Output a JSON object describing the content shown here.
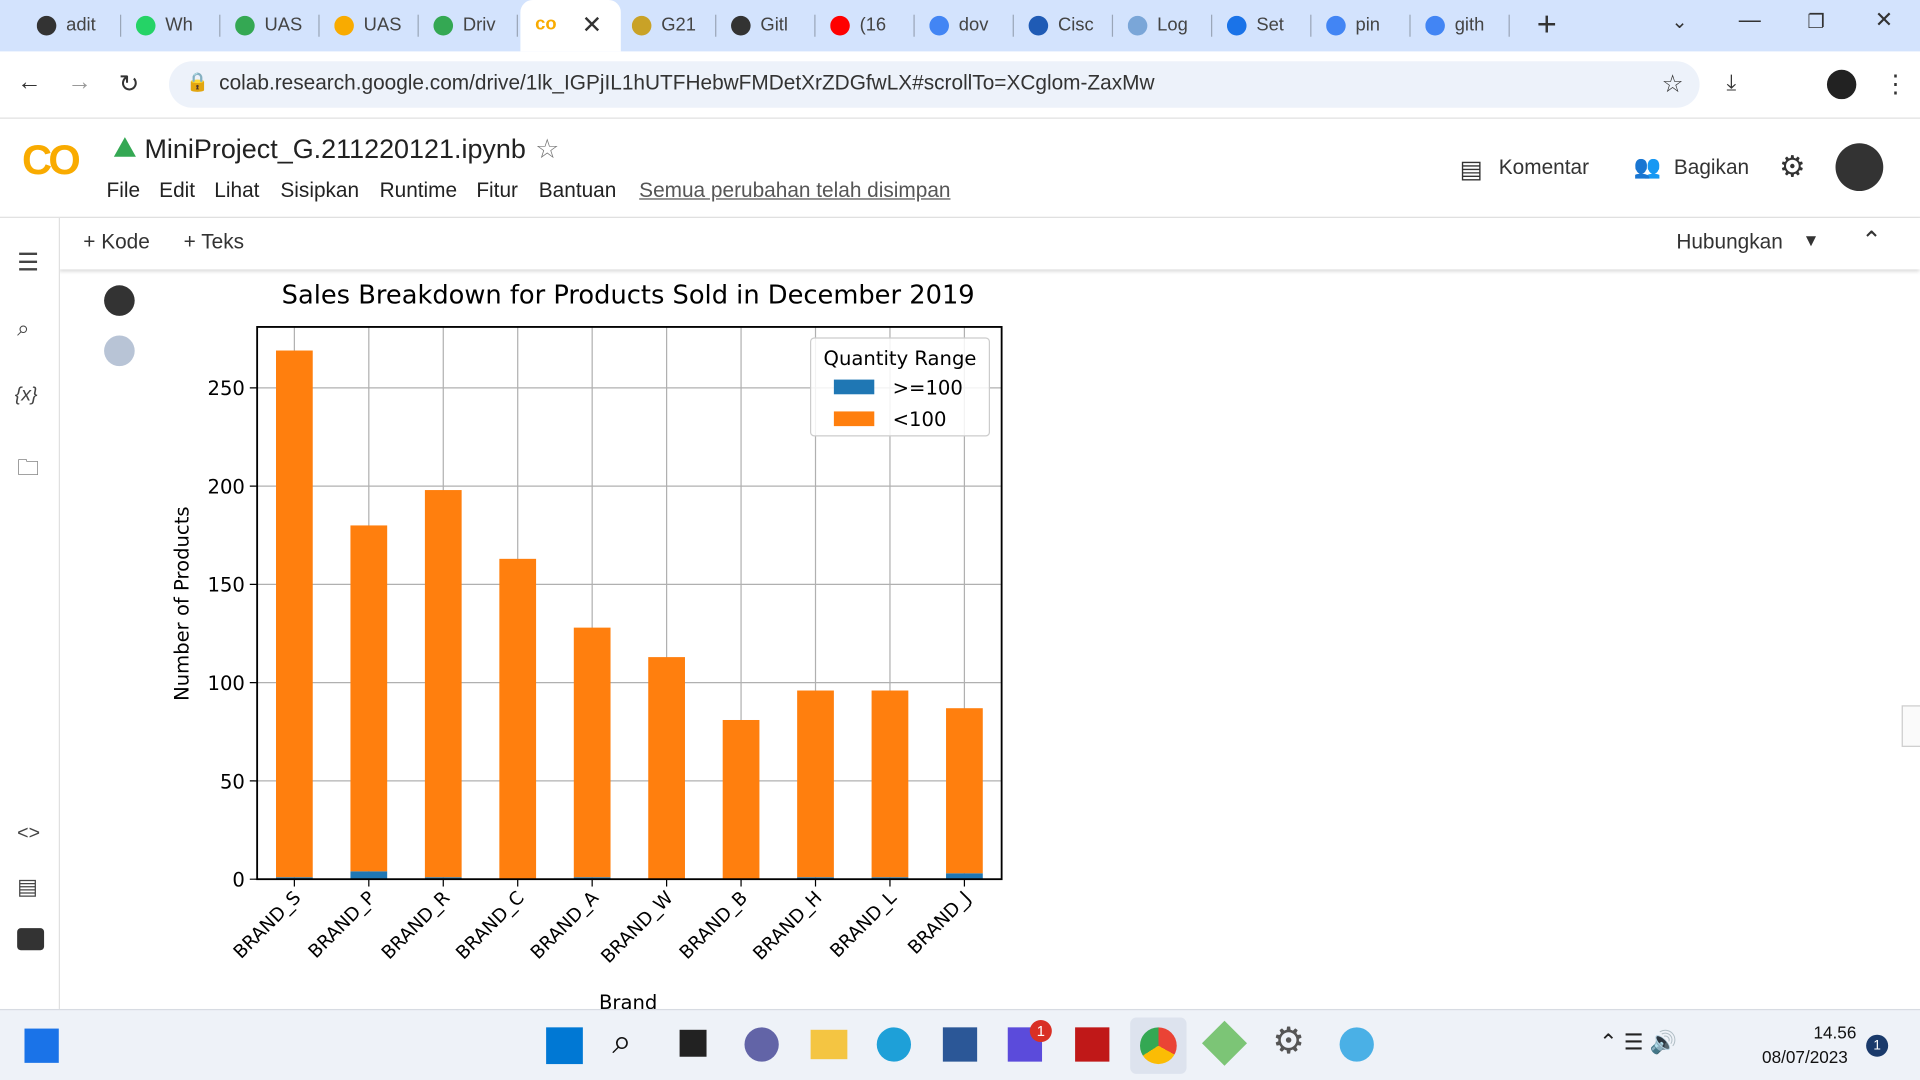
{
  "browser": {
    "tabs": [
      "adit",
      "Wh",
      "UAS",
      "UAS",
      "Driv",
      "G21",
      "Gitl",
      "(16",
      "dov",
      "Cisc",
      "Log",
      "Set",
      "pin",
      "gith"
    ],
    "url": "colab.research.google.com/drive/1lk_IGPjIL1hUTFHebwFMDetXrZDGfwLX#scrollTo=XCglom-ZaxMw"
  },
  "notebook": {
    "title": "MiniProject_G.211220121.ipynb",
    "menu": [
      "File",
      "Edit",
      "Lihat",
      "Sisipkan",
      "Runtime",
      "Fitur",
      "Bantuan"
    ],
    "save_status": "Semua perubahan telah disimpan",
    "comment": "Komentar",
    "share": "Bagikan",
    "add_code": "+ Kode",
    "add_text": "+ Teks",
    "connect": "Hubungkan"
  },
  "chart_data": {
    "type": "bar",
    "stacked": true,
    "title": "Sales Breakdown for Products Sold in December 2019",
    "x_label": "Brand",
    "y_label": "Number of Products",
    "legend_title": "Quantity Range",
    "legend": "upper right",
    "grid": true,
    "categories": [
      "BRAND_S",
      "BRAND_P",
      "BRAND_R",
      "BRAND_C",
      "BRAND_A",
      "BRAND_W",
      "BRAND_B",
      "BRAND_H",
      "BRAND_L",
      "BRAND_J"
    ],
    "series": [
      {
        "name": ">=100",
        "color": "#1f77b4",
        "values": [
          1,
          4,
          1,
          0,
          1,
          0,
          0,
          1,
          1,
          3
        ]
      },
      {
        "name": "<100",
        "color": "#ff7f0e",
        "values": [
          268,
          176,
          197,
          163,
          127,
          113,
          81,
          95,
          95,
          84
        ]
      }
    ],
    "ylim": [
      0,
      281
    ],
    "yticks": [
      0,
      50,
      100,
      150,
      200,
      250
    ]
  },
  "taskbar": {
    "time": "14.56",
    "date": "08/07/2023",
    "notification_count": "1",
    "app_badge": "1"
  }
}
